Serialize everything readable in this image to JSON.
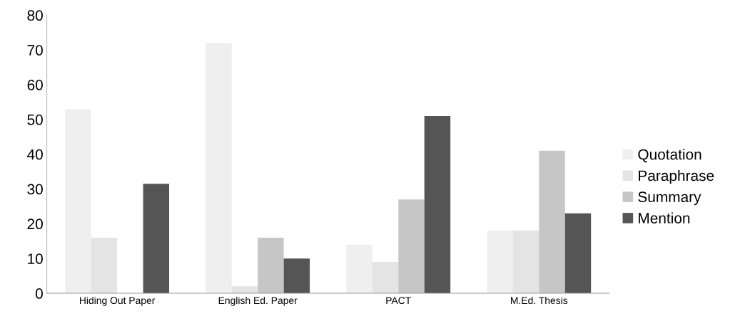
{
  "chart_data": {
    "type": "bar",
    "categories": [
      "Hiding Out Paper",
      "English Ed. Paper",
      "PACT",
      "M.Ed. Thesis"
    ],
    "series": [
      {
        "name": "Quotation",
        "color": "#efefef",
        "values": [
          53,
          72,
          14,
          18
        ]
      },
      {
        "name": "Paraphrase",
        "color": "#e4e4e4",
        "values": [
          16,
          2,
          9,
          18
        ]
      },
      {
        "name": "Summary",
        "color": "#c6c6c6",
        "values": [
          0,
          16,
          27,
          41
        ]
      },
      {
        "name": "Mention",
        "color": "#555555",
        "values": [
          31.5,
          10,
          51,
          23
        ]
      }
    ],
    "ylim": [
      0,
      80
    ],
    "yticks": [
      0,
      10,
      20,
      30,
      40,
      50,
      60,
      70,
      80
    ],
    "grid": false,
    "legend": "right"
  }
}
